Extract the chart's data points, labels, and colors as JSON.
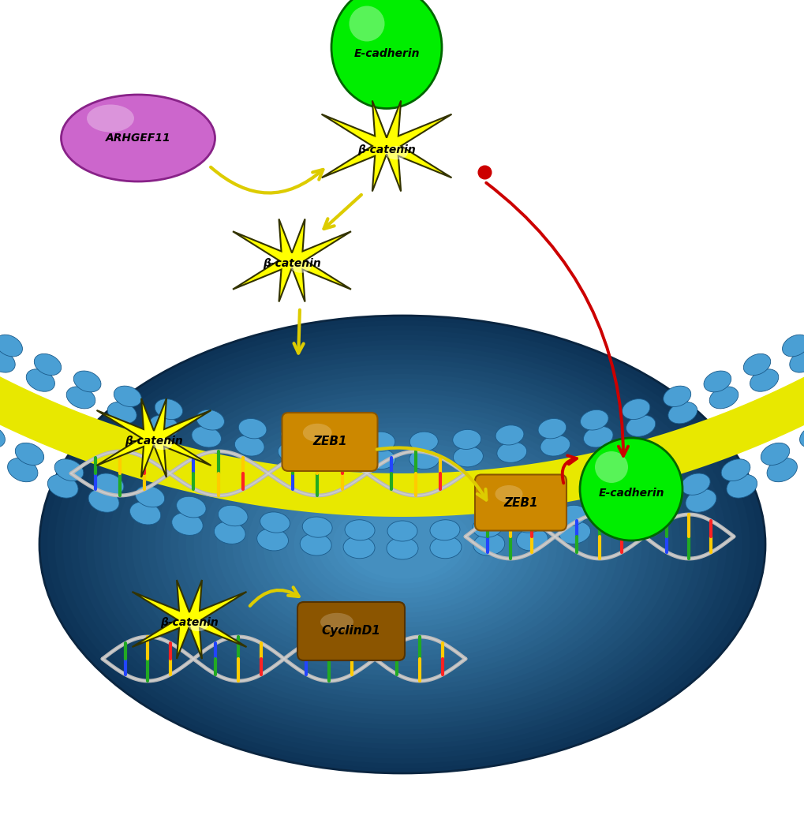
{
  "bg_color": "#ffffff",
  "nucleus_outer": "#0d3a5c",
  "nucleus_inner": "#1e6fa0",
  "nucleus_center": "#3a8fbf",
  "membrane_blue": "#4a9fd4",
  "membrane_blue_dark": "#1a5a8a",
  "membrane_yellow": "#e8e800",
  "arhgef_color": "#cc66cc",
  "arhgef_edge": "#882288",
  "ecadherin_green": "#00ee00",
  "ecadherin_edge": "#006600",
  "beta_yellow": "#ffff00",
  "beta_edge": "#888800",
  "zeb1_color": "#cc8800",
  "zeb1_edge": "#885500",
  "cyclin_color": "#8B5500",
  "cyclin_edge": "#553300",
  "dna_gray": "#aaaaaa",
  "dna_silver": "#cccccc",
  "arrow_yellow": "#ddcc00",
  "arrow_red": "#cc0000",
  "labels": {
    "arhgef": "ARHGEF11",
    "ecad_mem": "E-cadherin",
    "beta_mem": "β-catenin",
    "beta_trans": "β-catenin",
    "beta_n1": "β-catenin",
    "beta_n2": "β-catenin",
    "zeb1_a": "ZEB1",
    "zeb1_b": "ZEB1",
    "ecad_nuc": "E-cadherin",
    "cyclin": "CyclinD1"
  }
}
